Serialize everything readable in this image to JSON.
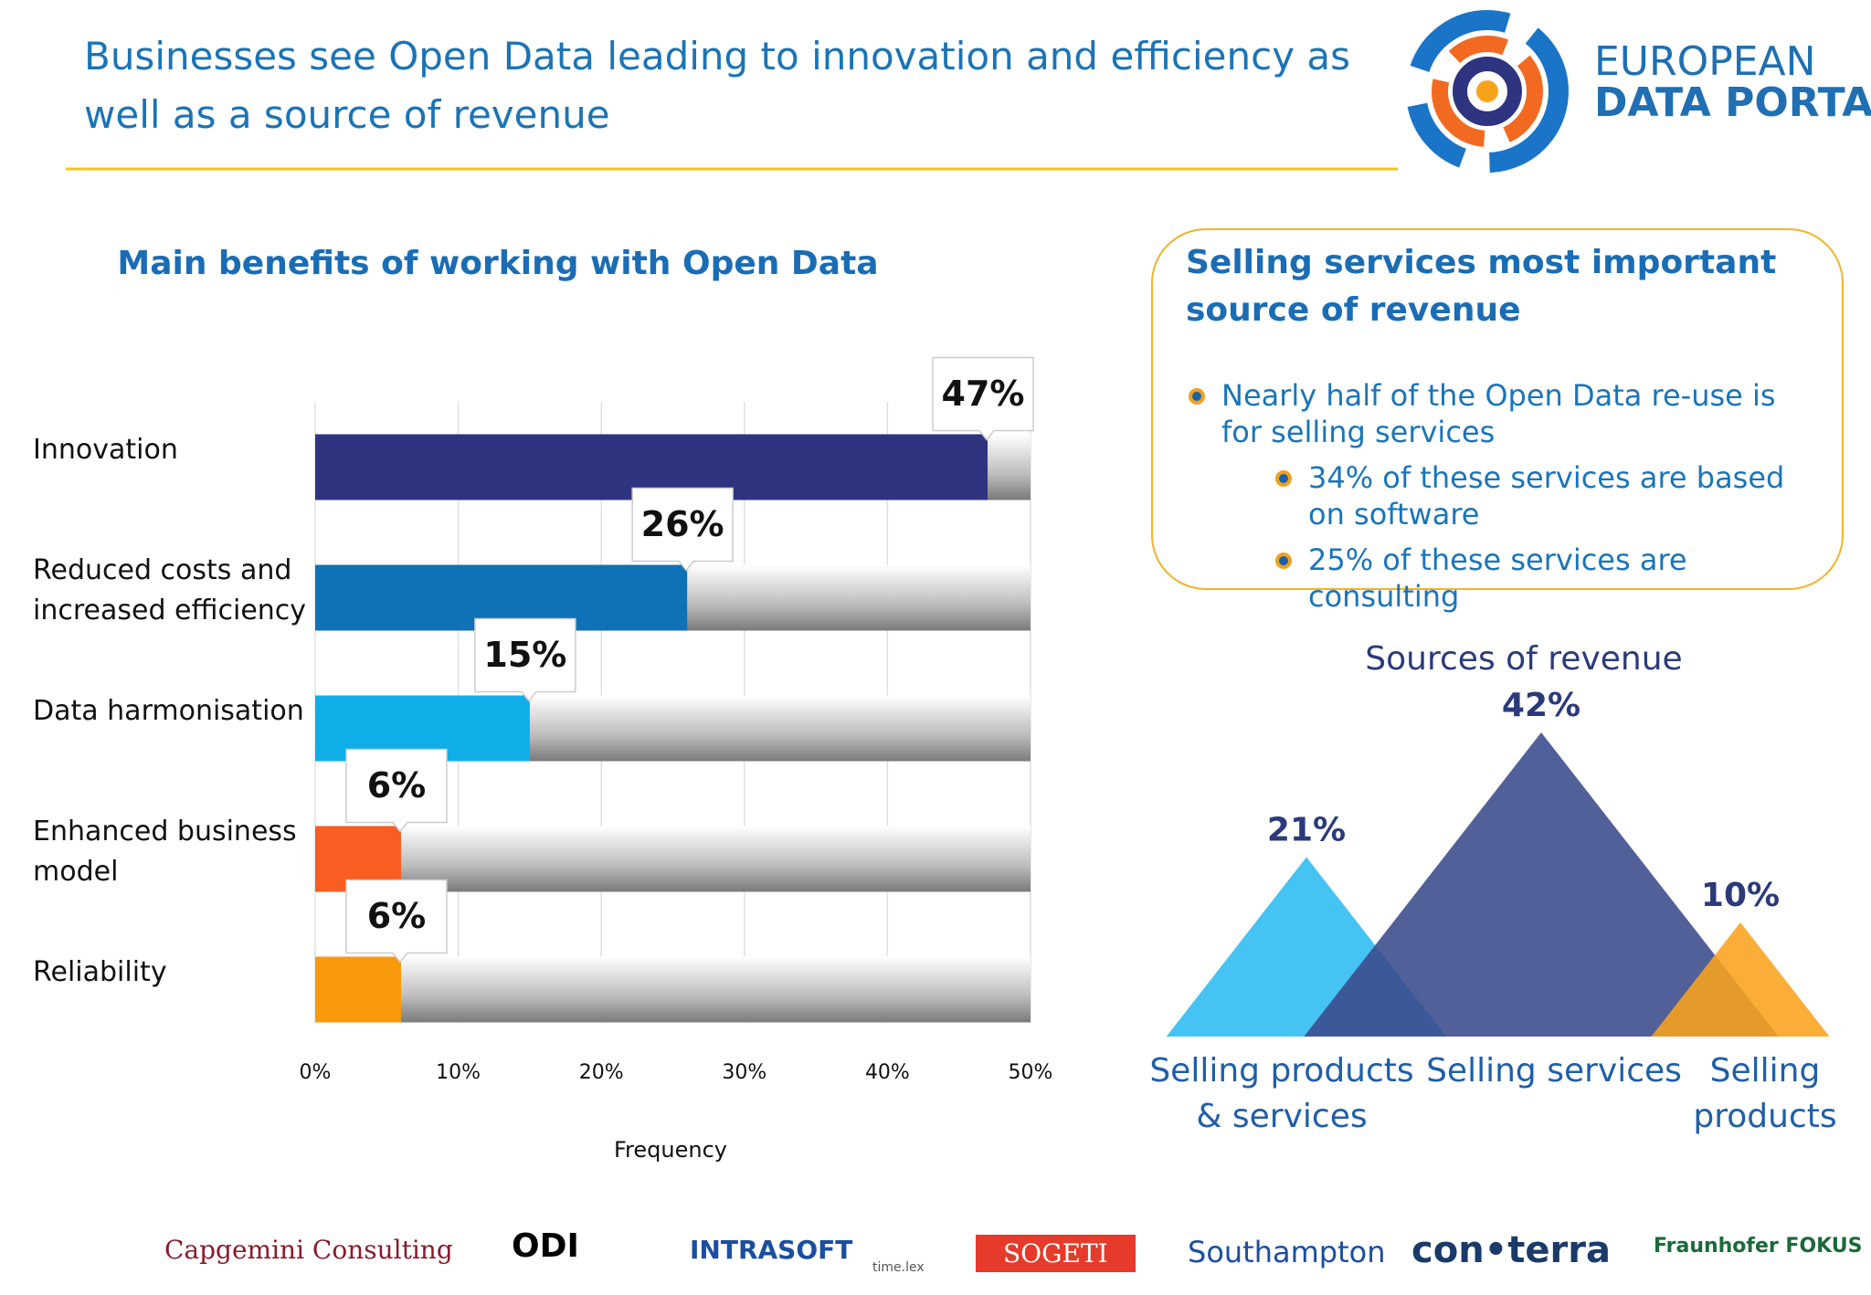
{
  "header": {
    "title": "Businesses see Open Data leading to innovation and efficiency as well as a source of revenue",
    "logo_top": "EUROPEAN",
    "logo_bottom": "DATA PORTAL"
  },
  "chart_data": [
    {
      "type": "hbar",
      "title": "Main benefits of working with Open Data",
      "categories": [
        "Innovation",
        "Reduced costs and increased efficiency",
        "Data harmonisation",
        "Enhanced business model",
        "Reliability"
      ],
      "values": [
        47,
        26,
        15,
        6,
        6
      ],
      "value_labels": [
        "47%",
        "26%",
        "15%",
        "6%",
        "6%"
      ],
      "colors": [
        "#2e3480",
        "#0f72b6",
        "#10aee8",
        "#f95d21",
        "#f99a0c"
      ],
      "xlim": [
        0,
        50
      ],
      "xticks": [
        {
          "value": 0,
          "label": "0%"
        },
        {
          "value": 10,
          "label": "10%"
        },
        {
          "value": 20,
          "label": "20%"
        },
        {
          "value": 30,
          "label": "30%"
        },
        {
          "value": 40,
          "label": "40%"
        },
        {
          "value": 50,
          "label": "50%"
        }
      ],
      "xlabel": "Frequency",
      "grid": true
    },
    {
      "type": "triangle",
      "title": "Sources of revenue",
      "categories": [
        "Selling products & services",
        "Selling services",
        "Selling products"
      ],
      "values": [
        21,
        42,
        10
      ],
      "value_labels": [
        "21%",
        "42%",
        "10%"
      ],
      "colors": [
        "#2bbcf2",
        "#3a4a8c",
        "#f9a31b"
      ]
    }
  ],
  "callout": {
    "title": "Selling services most important source of revenue",
    "bullets": [
      "Nearly half of the Open Data re-use is for selling services",
      "34% of these services are based on software",
      "25% of these services are consulting"
    ]
  },
  "footer": {
    "logos": [
      "Capgemini Consulting",
      "ODI",
      "INTRASOFT",
      "time.lex",
      "SOGETI",
      "Southampton",
      "con•terra",
      "Fraunhofer FOKUS"
    ]
  }
}
